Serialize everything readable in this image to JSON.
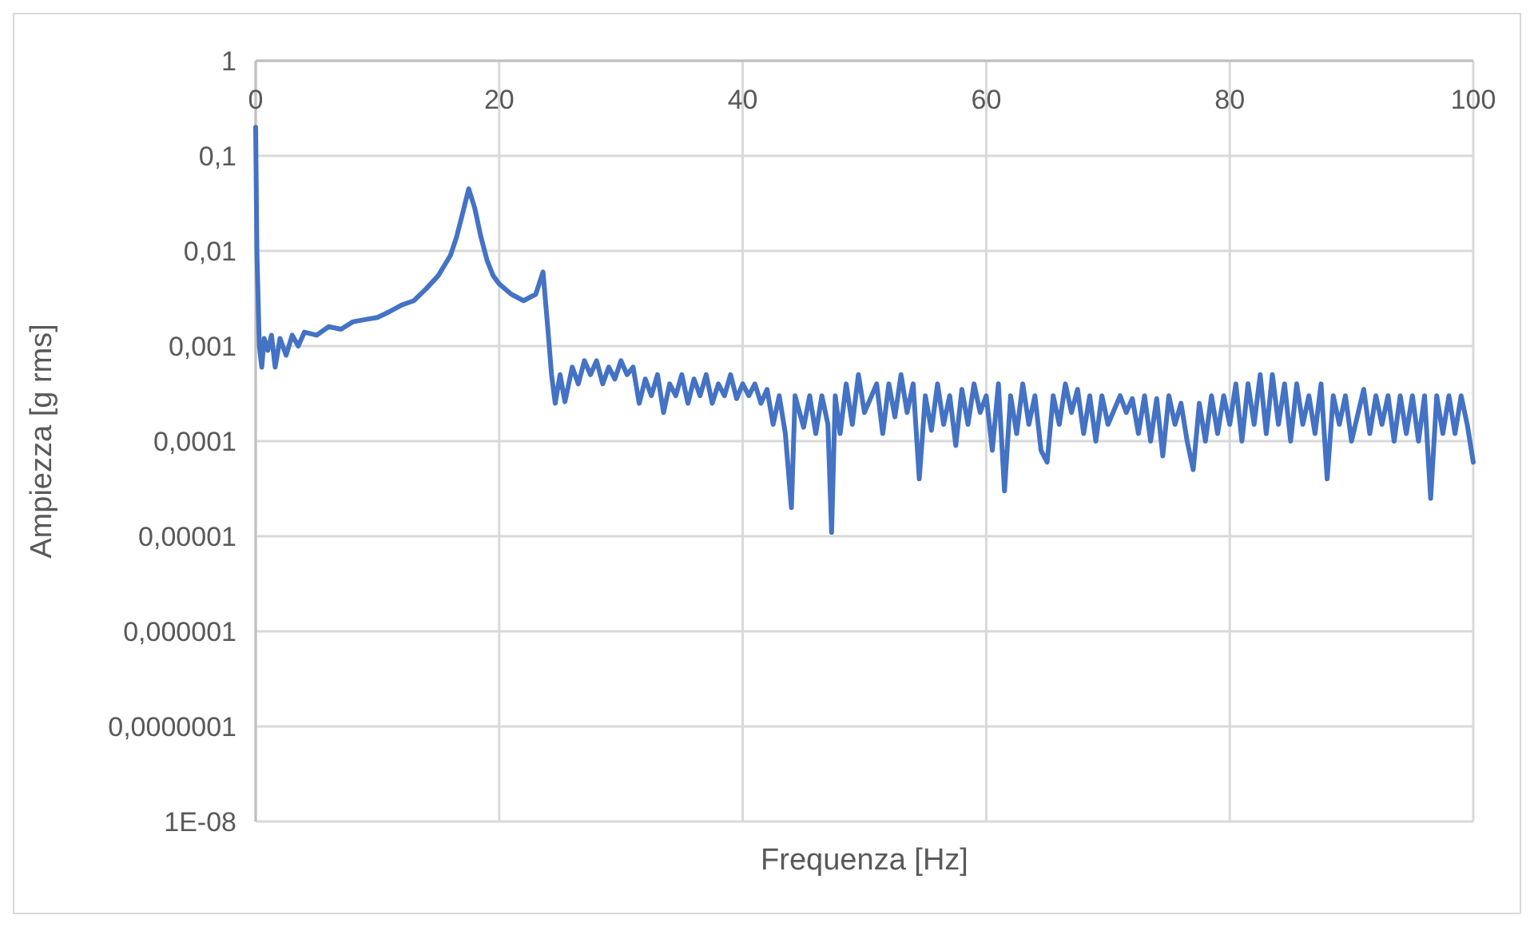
{
  "chart_data": {
    "type": "line",
    "xlabel": "Frequenza [Hz]",
    "ylabel": "Ampiezza [g rms]",
    "log": "y",
    "grid": true,
    "line_style": "solid",
    "xlim": [
      0,
      100
    ],
    "xticks": [
      0,
      20,
      40,
      60,
      80,
      100
    ],
    "ylim": [
      1e-08,
      1
    ],
    "yticks": [
      1,
      {
        "value": 0.1,
        "label": "0,1"
      },
      {
        "value": 0.01,
        "label": "0,01"
      },
      {
        "value": 0.001,
        "label": "0,001"
      },
      {
        "value": 0.0001,
        "label": "0,0001"
      },
      {
        "value": 1e-05,
        "label": "0,00001"
      },
      {
        "value": 1e-06,
        "label": "0,000001"
      },
      {
        "value": 1e-07,
        "label": "0,0000001"
      },
      {
        "value": 1e-08,
        "label": "1E-08"
      }
    ],
    "series": [
      {
        "color": "#4472c4",
        "x": [
          0,
          0.1,
          0.3,
          0.5,
          0.7,
          1,
          1.3,
          1.6,
          2,
          2.5,
          3,
          3.5,
          4,
          5,
          6,
          7,
          8,
          9,
          10,
          11,
          12,
          13,
          14,
          15,
          16,
          16.5,
          17,
          17.5,
          18,
          18.5,
          19,
          19.5,
          20,
          21,
          22,
          23,
          23.6,
          24,
          24.3,
          24.6,
          25,
          25.4,
          26,
          26.5,
          27,
          27.5,
          28,
          28.5,
          29,
          29.5,
          30,
          30.5,
          31,
          31.5,
          32,
          32.5,
          33,
          33.5,
          34,
          34.5,
          35,
          35.5,
          36,
          36.5,
          37,
          37.5,
          38,
          38.5,
          39,
          39.5,
          40,
          40.5,
          41,
          41.5,
          42,
          42.5,
          43,
          43.5,
          44,
          44.3,
          45,
          45.5,
          46,
          46.5,
          47,
          47.3,
          47.6,
          48,
          48.5,
          49,
          49.5,
          50,
          51,
          51.5,
          52,
          52.5,
          53,
          53.5,
          54,
          54.5,
          55,
          55.5,
          56,
          56.5,
          57,
          57.5,
          58,
          58.5,
          59,
          59.5,
          60,
          60.5,
          61,
          61.5,
          62,
          62.5,
          63,
          63.5,
          64,
          64.5,
          65,
          65.5,
          66,
          66.5,
          67,
          67.5,
          68,
          68.5,
          69,
          69.5,
          70,
          71,
          71.5,
          72,
          72.5,
          73,
          73.5,
          74,
          74.5,
          75,
          75.5,
          76,
          76.5,
          77,
          77.5,
          78,
          78.5,
          79,
          79.5,
          80,
          80.5,
          81,
          81.5,
          82,
          82.5,
          83,
          83.5,
          84,
          84.5,
          85,
          85.5,
          86,
          86.5,
          87,
          87.5,
          88,
          88.5,
          89,
          89.5,
          90,
          91,
          91.5,
          92,
          92.5,
          93,
          93.5,
          94,
          94.5,
          95,
          95.5,
          96,
          96.5,
          97,
          97.5,
          98,
          98.5,
          99,
          99.5,
          100
        ],
        "values": [
          0.2,
          0.01,
          0.001,
          0.0006,
          0.0012,
          0.0009,
          0.0013,
          0.0006,
          0.0012,
          0.0008,
          0.0013,
          0.001,
          0.0014,
          0.0013,
          0.0016,
          0.0015,
          0.0018,
          0.0019,
          0.002,
          0.0023,
          0.0027,
          0.003,
          0.004,
          0.0055,
          0.009,
          0.014,
          0.025,
          0.045,
          0.028,
          0.014,
          0.008,
          0.0055,
          0.0045,
          0.0035,
          0.003,
          0.0035,
          0.006,
          0.0015,
          0.0005,
          0.00025,
          0.0005,
          0.00026,
          0.0006,
          0.0004,
          0.0007,
          0.0005,
          0.0007,
          0.0004,
          0.0006,
          0.00045,
          0.0007,
          0.0005,
          0.0006,
          0.00025,
          0.00045,
          0.0003,
          0.0005,
          0.0002,
          0.0004,
          0.0003,
          0.0005,
          0.00025,
          0.00045,
          0.0003,
          0.0005,
          0.00025,
          0.0004,
          0.0003,
          0.0005,
          0.00028,
          0.0004,
          0.0003,
          0.0004,
          0.00025,
          0.00035,
          0.00015,
          0.0003,
          0.00012,
          2e-05,
          0.0003,
          0.00014,
          0.0003,
          0.00012,
          0.0003,
          0.00015,
          1.1e-05,
          0.0003,
          0.00012,
          0.0004,
          0.00015,
          0.0005,
          0.0002,
          0.0004,
          0.00012,
          0.0004,
          0.00018,
          0.0005,
          0.0002,
          0.0004,
          4e-05,
          0.0003,
          0.00013,
          0.0004,
          0.00015,
          0.0003,
          9e-05,
          0.00035,
          0.00015,
          0.0004,
          0.0002,
          0.0003,
          8e-05,
          0.0004,
          3e-05,
          0.0003,
          0.00012,
          0.0004,
          0.00015,
          0.0003,
          8e-05,
          6e-05,
          0.0003,
          0.00015,
          0.0004,
          0.0002,
          0.00035,
          0.00012,
          0.0003,
          0.0001,
          0.0003,
          0.00015,
          0.0003,
          0.0002,
          0.00028,
          0.00012,
          0.0003,
          0.0001,
          0.00028,
          7e-05,
          0.0003,
          0.00015,
          0.00025,
          0.0001,
          5e-05,
          0.00025,
          0.0001,
          0.0003,
          0.00012,
          0.0003,
          0.00015,
          0.0004,
          0.0001,
          0.0004,
          0.00015,
          0.0005,
          0.00012,
          0.0005,
          0.00015,
          0.0004,
          0.0001,
          0.0004,
          0.00015,
          0.0003,
          0.00012,
          0.0004,
          4e-05,
          0.0003,
          0.00015,
          0.0003,
          0.0001,
          0.00035,
          0.00012,
          0.0003,
          0.00015,
          0.0003,
          0.0001,
          0.0003,
          0.00012,
          0.0003,
          0.0001,
          0.0003,
          2.5e-05,
          0.0003,
          0.00012,
          0.0003,
          0.00012,
          0.0003,
          0.00015,
          6e-05
        ]
      }
    ]
  }
}
